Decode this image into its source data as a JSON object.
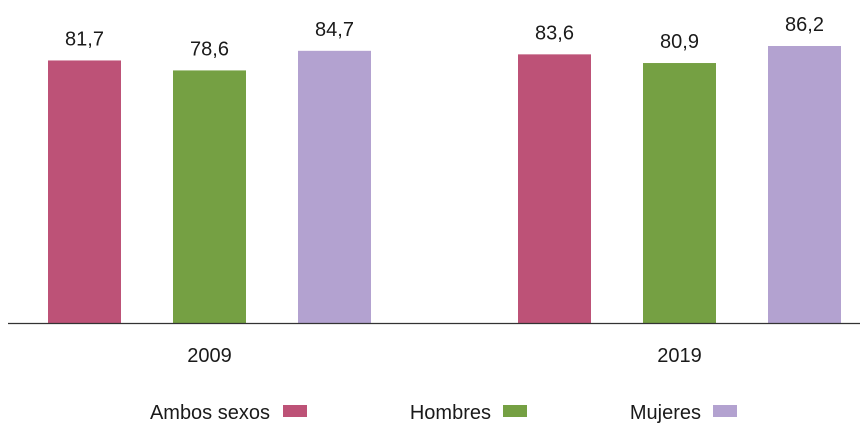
{
  "chart_data": {
    "type": "bar",
    "categories": [
      "2009",
      "2019"
    ],
    "series": [
      {
        "name": "Ambos sexos",
        "values": [
          81.7,
          83.6
        ],
        "labels": [
          "81,7",
          "83,6"
        ],
        "color": "#bd5277"
      },
      {
        "name": "Hombres",
        "values": [
          78.6,
          80.9
        ],
        "labels": [
          "78,6",
          "80,9"
        ],
        "color": "#75a043"
      },
      {
        "name": "Mujeres",
        "values": [
          84.7,
          86.2
        ],
        "labels": [
          "84,7",
          "86,2"
        ],
        "color": "#b3a2d0"
      }
    ],
    "title": "",
    "xlabel": "",
    "ylabel": "",
    "ylim": [
      0,
      88
    ],
    "grid": false,
    "legend": "bottom",
    "axis_color": "#333333"
  }
}
